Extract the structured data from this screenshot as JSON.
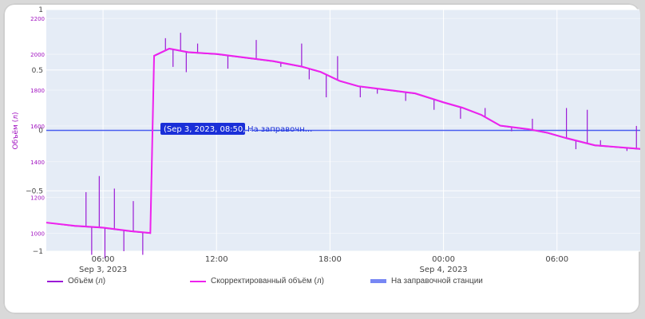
{
  "chart_data": {
    "type": "line",
    "ylabel": "Объём (л)",
    "x_ticks": [
      {
        "t": "06:00",
        "d": "Sep 3, 2023"
      },
      {
        "t": "12:00",
        "d": ""
      },
      {
        "t": "18:00",
        "d": ""
      },
      {
        "t": "00:00",
        "d": "Sep 4, 2023"
      },
      {
        "t": "06:00",
        "d": ""
      }
    ],
    "x_tick_hours": [
      6,
      12,
      18,
      24,
      30
    ],
    "xlim_hours": [
      3.0,
      34.4
    ],
    "y_left_ticks": [
      1000,
      1200,
      1400,
      1600,
      1800,
      2000,
      2200
    ],
    "y_mid_ticks": [
      "1",
      "0.5",
      "0",
      "−0.5",
      "−1"
    ],
    "y_mid_values": [
      1,
      0.5,
      0,
      -0.5,
      -1
    ],
    "ylim": [
      900,
      2250
    ],
    "y2lim": [
      -1,
      1
    ],
    "hover_label": "(Sep 3, 2023, 08:50, 0)",
    "hover_trace": "На заправочн...",
    "series": [
      {
        "name": "Объём (л)",
        "color": "#9b1bd6",
        "points": [
          [
            3.0,
            1060
          ],
          [
            4.5,
            1040
          ],
          [
            6.0,
            1030
          ],
          [
            7.5,
            1010
          ],
          [
            8.5,
            1000
          ],
          [
            8.7,
            1990
          ],
          [
            9.5,
            2030
          ],
          [
            10.5,
            2010
          ],
          [
            12.0,
            2000
          ],
          [
            13.5,
            1980
          ],
          [
            15.0,
            1960
          ],
          [
            16.5,
            1930
          ],
          [
            17.5,
            1900
          ],
          [
            18.5,
            1850
          ],
          [
            19.5,
            1820
          ],
          [
            21.0,
            1800
          ],
          [
            22.5,
            1780
          ],
          [
            24.0,
            1730
          ],
          [
            25.0,
            1700
          ],
          [
            26.0,
            1660
          ],
          [
            27.0,
            1600
          ],
          [
            28.5,
            1580
          ],
          [
            29.5,
            1560
          ],
          [
            30.5,
            1530
          ],
          [
            32.0,
            1490
          ],
          [
            34.4,
            1470
          ]
        ]
      },
      {
        "name": "Скорректированный объём (л)",
        "color": "#ee22ee",
        "points": [
          [
            3.0,
            1060
          ],
          [
            4.5,
            1042
          ],
          [
            6.0,
            1032
          ],
          [
            7.5,
            1012
          ],
          [
            8.5,
            1002
          ],
          [
            8.7,
            1992
          ],
          [
            9.5,
            2032
          ],
          [
            10.5,
            2012
          ],
          [
            12.0,
            2002
          ],
          [
            13.5,
            1982
          ],
          [
            15.0,
            1962
          ],
          [
            16.5,
            1932
          ],
          [
            17.5,
            1902
          ],
          [
            18.5,
            1852
          ],
          [
            19.5,
            1822
          ],
          [
            21.0,
            1802
          ],
          [
            22.5,
            1782
          ],
          [
            24.0,
            1732
          ],
          [
            25.0,
            1702
          ],
          [
            26.0,
            1662
          ],
          [
            27.0,
            1602
          ],
          [
            28.5,
            1582
          ],
          [
            29.5,
            1562
          ],
          [
            30.5,
            1532
          ],
          [
            32.0,
            1492
          ],
          [
            34.4,
            1472
          ]
        ]
      },
      {
        "name": "На заправочной станции",
        "color": "#4a5ff0",
        "y2": 0
      }
    ],
    "spikes": [
      [
        5.1,
        1230
      ],
      [
        5.4,
        880
      ],
      [
        5.8,
        1320
      ],
      [
        6.1,
        860
      ],
      [
        6.6,
        1250
      ],
      [
        7.1,
        900
      ],
      [
        7.6,
        1180
      ],
      [
        8.1,
        880
      ],
      [
        9.3,
        2090
      ],
      [
        9.7,
        1930
      ],
      [
        10.1,
        2120
      ],
      [
        10.4,
        1900
      ],
      [
        11.0,
        2060
      ],
      [
        12.6,
        1920
      ],
      [
        14.1,
        2080
      ],
      [
        15.4,
        1930
      ],
      [
        16.5,
        2060
      ],
      [
        16.9,
        1860
      ],
      [
        17.8,
        1760
      ],
      [
        18.4,
        1990
      ],
      [
        19.6,
        1760
      ],
      [
        20.5,
        1780
      ],
      [
        22.0,
        1740
      ],
      [
        23.5,
        1690
      ],
      [
        24.9,
        1640
      ],
      [
        26.2,
        1700
      ],
      [
        27.6,
        1570
      ],
      [
        28.7,
        1640
      ],
      [
        29.7,
        1560
      ],
      [
        30.5,
        1700
      ],
      [
        31.0,
        1470
      ],
      [
        31.6,
        1690
      ],
      [
        32.3,
        1520
      ],
      [
        33.7,
        1460
      ],
      [
        34.2,
        1600
      ]
    ],
    "legend": [
      {
        "label": "Объём (л)",
        "color": "#9b1bd6",
        "kind": "line"
      },
      {
        "label": "Скорректированный объём (л)",
        "color": "#ee22ee",
        "kind": "line"
      },
      {
        "label": "На заправочной станции",
        "color": "#4a5ff0",
        "kind": "band"
      }
    ],
    "legend_placement": "bottom",
    "grid": true
  }
}
